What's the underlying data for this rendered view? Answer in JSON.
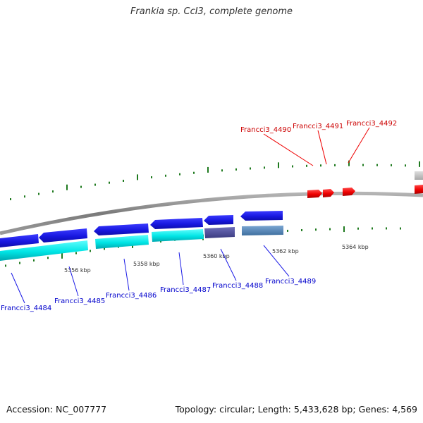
{
  "title": "Frankia sp. CcI3, complete genome",
  "footer": {
    "accession": "Accession: NC_007777",
    "summary": "Topology: circular; Length: 5,433,628 bp; Genes: 4,569"
  },
  "colors": {
    "backbone": "#8a8a8a",
    "forward_gene": "#ee0000",
    "reverse_gene": "#1a1ae6",
    "reverse_cds": "#00e5e5",
    "highlight_gene": "#4a4a9a",
    "highlight_cds": "#4f86b8",
    "gc_skew_tick": "#1f7a1f",
    "forward_label": "#cc0000",
    "reverse_label": "#0000cc",
    "tick_text": "#333333"
  },
  "scale": {
    "unit": "kbp",
    "ticks": [
      {
        "label": "5356 kbp"
      },
      {
        "label": "5358 kbp"
      },
      {
        "label": "5360 kbp"
      },
      {
        "label": "5362 kbp"
      },
      {
        "label": "5364 kbp"
      }
    ]
  },
  "genes": {
    "forward": [
      {
        "label": "Francci3_4490"
      },
      {
        "label": "Francci3_4491"
      },
      {
        "label": "Francci3_4492"
      }
    ],
    "reverse": [
      {
        "label": "Francci3_4484"
      },
      {
        "label": "Francci3_4485"
      },
      {
        "label": "Francci3_4486"
      },
      {
        "label": "Francci3_4487"
      },
      {
        "label": "Francci3_4488"
      },
      {
        "label": "Francci3_4489"
      }
    ]
  }
}
